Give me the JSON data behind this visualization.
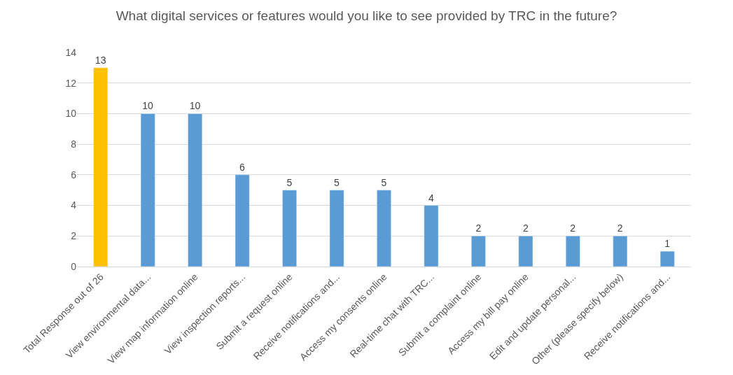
{
  "chart_data": {
    "type": "bar",
    "title": "What digital services or features would you like to see provided by TRC in the future?",
    "categories": [
      "Total Response out of 26",
      "View environmental data...",
      "View map information online",
      "View inspection reports...",
      "Submit a request online",
      "Receive notifications and...",
      "Access my consents online",
      "Real-time chat with TRC...",
      "Submit a complaint online",
      "Access my bill pay online",
      "Edit and update personal...",
      "Other (please specify below)",
      "Receive notifications and..."
    ],
    "values": [
      13,
      10,
      10,
      6,
      5,
      5,
      5,
      4,
      2,
      2,
      2,
      2,
      1
    ],
    "colors": [
      "#ffc000",
      "#5b9bd5",
      "#5b9bd5",
      "#5b9bd5",
      "#5b9bd5",
      "#5b9bd5",
      "#5b9bd5",
      "#5b9bd5",
      "#5b9bd5",
      "#5b9bd5",
      "#5b9bd5",
      "#5b9bd5",
      "#5b9bd5"
    ],
    "ylim": [
      0,
      14
    ],
    "yticks": [
      0,
      2,
      4,
      6,
      8,
      10,
      12,
      14
    ],
    "grid": "y",
    "data_labels": true
  }
}
